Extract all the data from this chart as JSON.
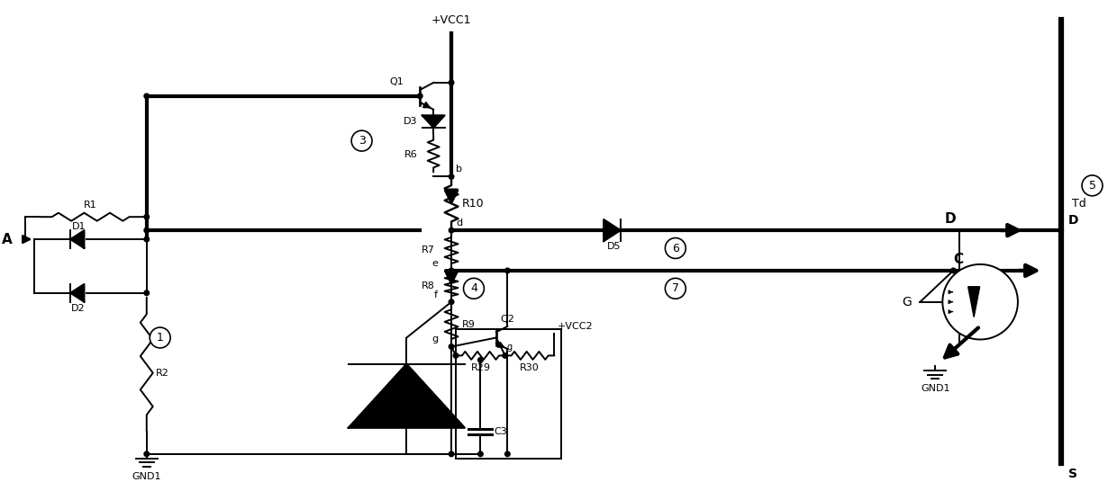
{
  "bg_color": "#ffffff",
  "line_color": "#000000",
  "thick_lw": 3.0,
  "thin_lw": 1.4,
  "fig_width": 12.4,
  "fig_height": 5.56,
  "dpi": 100,
  "xlim": [
    0,
    124
  ],
  "ylim": [
    0,
    55.6
  ]
}
